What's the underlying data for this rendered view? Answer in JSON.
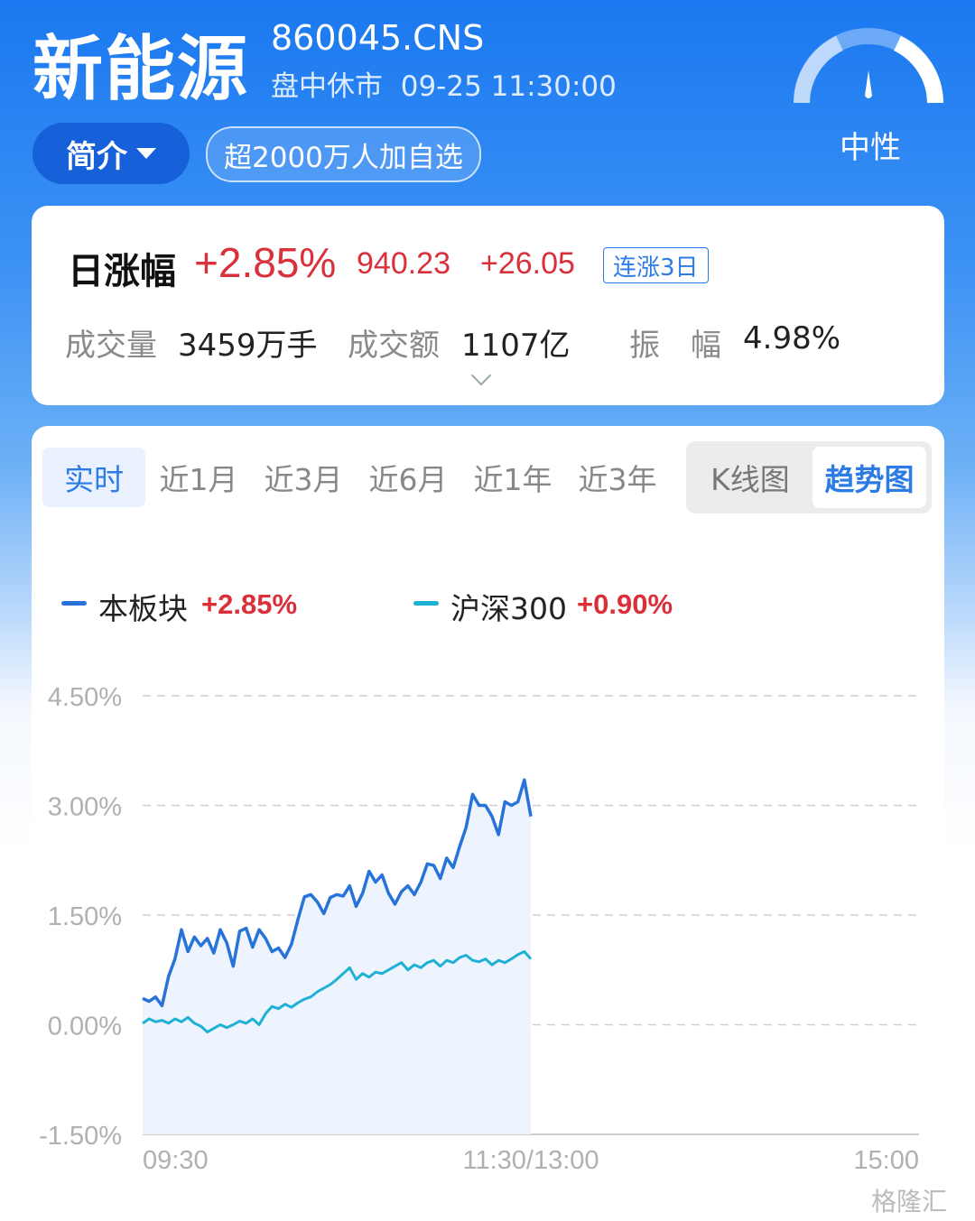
{
  "header": {
    "title": "新能源",
    "code": "860045.CNS",
    "status": "盘中休市",
    "datetime": "09-25 11:30:00",
    "intro_label": "简介",
    "fav_label": "超2000万人加自选",
    "sentiment": "中性"
  },
  "quote": {
    "day_label": "日涨幅",
    "change_pct": "+2.85%",
    "price": "940.23",
    "change": "+26.05",
    "streak_badge": "连涨3日",
    "volume_label": "成交量",
    "volume": "3459万手",
    "amount_label": "成交额",
    "amount": "1107亿",
    "amplitude_label": "振　幅",
    "amplitude": "4.98%"
  },
  "tabs": [
    "实时",
    "近1月",
    "近3月",
    "近6月",
    "近1年",
    "近3年"
  ],
  "active_tab": "实时",
  "view_toggle": {
    "kline": "K线图",
    "trend": "趋势图",
    "active": "趋势图"
  },
  "colors": {
    "up": "#d9303a",
    "sector": "#2873d9",
    "index": "#1fb0d6",
    "accent": "#2d7be5"
  },
  "watermark": "格隆汇",
  "chart_data": {
    "type": "line",
    "y_unit": "%",
    "ylim": [
      -1.5,
      4.5
    ],
    "yticks": [
      "4.50%",
      "3.00%",
      "1.50%",
      "0.00%",
      "-1.50%"
    ],
    "ytick_values": [
      4.5,
      3.0,
      1.5,
      0.0,
      -1.5
    ],
    "xticks": [
      "09:30",
      "11:30/13:00",
      "15:00"
    ],
    "x_range_minutes": [
      0,
      240
    ],
    "grid": true,
    "legend_position": "top-left",
    "series": [
      {
        "name": "本板块",
        "value_label": "+2.85%",
        "color": "#2873d9",
        "area": true,
        "x": [
          0,
          2,
          4,
          6,
          8,
          10,
          12,
          14,
          16,
          18,
          20,
          22,
          24,
          26,
          28,
          30,
          32,
          34,
          36,
          38,
          40,
          42,
          44,
          46,
          48,
          50,
          52,
          54,
          56,
          58,
          60,
          62,
          64,
          66,
          68,
          70,
          72,
          74,
          76,
          78,
          80,
          82,
          84,
          86,
          88,
          90,
          92,
          94,
          96,
          98,
          100,
          102,
          104,
          106,
          108,
          110,
          112,
          114,
          116,
          118,
          120
        ],
        "y": [
          0.36,
          0.32,
          0.38,
          0.26,
          0.66,
          0.9,
          1.3,
          1.0,
          1.2,
          1.08,
          1.18,
          0.98,
          1.3,
          1.12,
          0.8,
          1.28,
          1.32,
          1.06,
          1.3,
          1.18,
          1.0,
          1.05,
          0.92,
          1.1,
          1.44,
          1.75,
          1.78,
          1.68,
          1.52,
          1.74,
          1.78,
          1.76,
          1.9,
          1.62,
          1.8,
          2.1,
          1.95,
          2.05,
          1.8,
          1.65,
          1.82,
          1.9,
          1.78,
          1.95,
          2.2,
          2.18,
          2.0,
          2.28,
          2.15,
          2.44,
          2.7,
          3.15,
          3.0,
          3.0,
          2.85,
          2.6,
          3.05,
          3.0,
          3.05,
          3.35,
          2.85
        ]
      },
      {
        "name": "沪深300",
        "value_label": "+0.90%",
        "color": "#1fb0d6",
        "area": false,
        "x": [
          0,
          2,
          4,
          6,
          8,
          10,
          12,
          14,
          16,
          18,
          20,
          22,
          24,
          26,
          28,
          30,
          32,
          34,
          36,
          38,
          40,
          42,
          44,
          46,
          48,
          50,
          52,
          54,
          56,
          58,
          60,
          62,
          64,
          66,
          68,
          70,
          72,
          74,
          76,
          78,
          80,
          82,
          84,
          86,
          88,
          90,
          92,
          94,
          96,
          98,
          100,
          102,
          104,
          106,
          108,
          110,
          112,
          114,
          116,
          118,
          120
        ],
        "y": [
          0.02,
          0.08,
          0.04,
          0.06,
          0.02,
          0.08,
          0.04,
          0.1,
          0.02,
          -0.02,
          -0.1,
          -0.05,
          0.0,
          -0.04,
          0.0,
          0.05,
          0.02,
          0.08,
          0.0,
          0.15,
          0.25,
          0.22,
          0.28,
          0.24,
          0.3,
          0.35,
          0.38,
          0.45,
          0.5,
          0.55,
          0.62,
          0.7,
          0.78,
          0.62,
          0.7,
          0.65,
          0.72,
          0.7,
          0.75,
          0.8,
          0.85,
          0.75,
          0.82,
          0.78,
          0.85,
          0.88,
          0.8,
          0.88,
          0.85,
          0.92,
          0.95,
          0.88,
          0.86,
          0.9,
          0.82,
          0.88,
          0.85,
          0.9,
          0.96,
          1.0,
          0.9
        ]
      }
    ]
  }
}
